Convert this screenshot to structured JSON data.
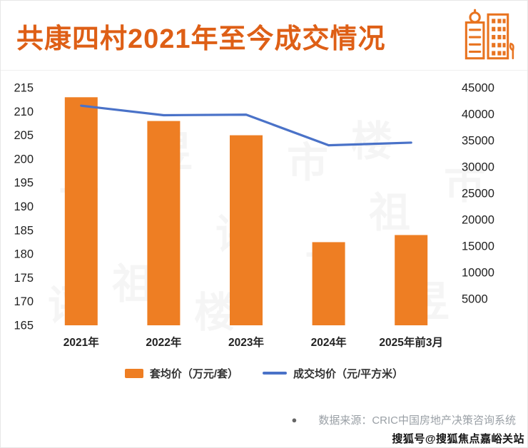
{
  "header": {
    "title": "共康四村2021年至今成交情况"
  },
  "chart_data": {
    "type": "bar",
    "title": "共康四村2021年至今成交情况",
    "categories": [
      "2021年",
      "2022年",
      "2023年",
      "2024年",
      "2025年前3月"
    ],
    "series": [
      {
        "name": "套均价（万元/套）",
        "type": "bar",
        "axis": "left",
        "values": [
          213,
          208,
          205,
          182.5,
          184
        ]
      },
      {
        "name": "成交均价（元/平方米）",
        "type": "line",
        "axis": "right",
        "values": [
          41600,
          39800,
          39900,
          34100,
          34600
        ]
      }
    ],
    "left_axis": {
      "min": 165,
      "max": 215,
      "divisions": 10,
      "ticks": [
        "215",
        "210",
        "205",
        "200",
        "195",
        "190",
        "185",
        "180",
        "175",
        "170",
        "165"
      ]
    },
    "right_axis": {
      "min": 0,
      "max": 45000,
      "divisions": 9,
      "ticks": [
        "45000",
        "40000",
        "35000",
        "30000",
        "25000",
        "20000",
        "15000",
        "10000",
        "5000"
      ]
    },
    "grid": false,
    "legend_position": "bottom"
  },
  "legend": {
    "bar_label": "套均价（万元/套）",
    "line_label": "成交均价（元/平方米）"
  },
  "footer": {
    "source_bullet": "●",
    "source": "数据来源：CRIC中国房地产决策咨询系统",
    "watermark": "搜狐号@搜狐焦点嘉峪关站"
  },
  "background_watermark": {
    "text": "丁祖昱评楼市"
  },
  "colors": {
    "title": "#de5f16",
    "bar": "#ee7e23",
    "line": "#4a72c8",
    "axis_text": "#1f1f1f",
    "source_text": "#9aa0a6"
  }
}
